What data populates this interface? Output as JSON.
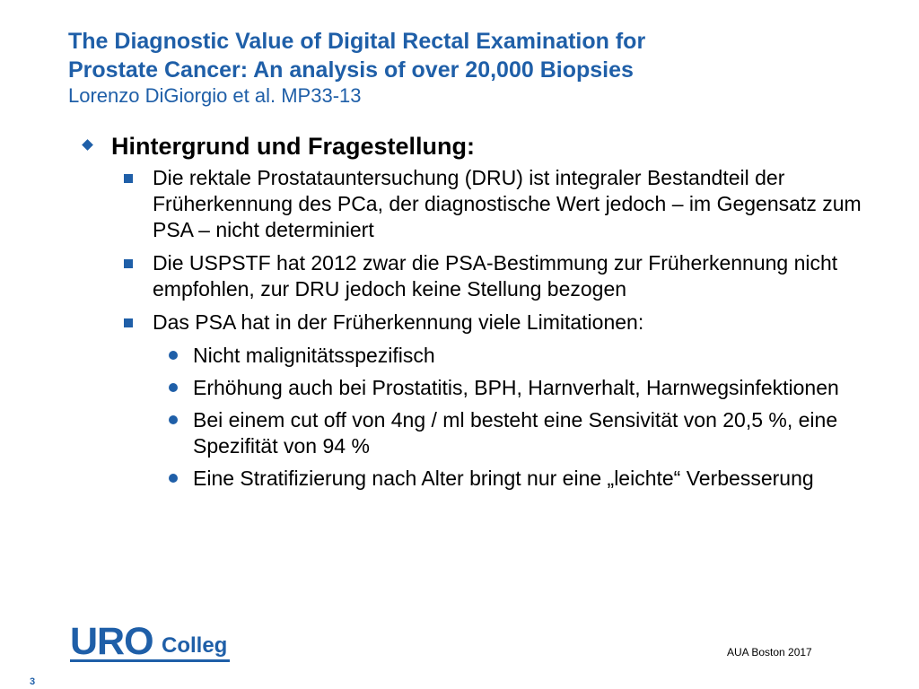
{
  "title": {
    "line1": "The Diagnostic Value of Digital Rectal Examination for",
    "line2": "Prostate Cancer: An analysis of over 20,000 Biopsies",
    "subtitle": "Lorenzo DiGiorgio et al. MP33-13"
  },
  "content": {
    "heading": "Hintergrund und Fragestellung:",
    "bullets": [
      {
        "text": "Die rektale Prostatauntersuchung (DRU) ist integraler Bestandteil der Früherkennung des PCa, der diagnostische Wert jedoch – im Gegensatz zum PSA – nicht determiniert"
      },
      {
        "text": "Die USPSTF hat 2012 zwar die PSA-Bestimmung  zur Früherkennung nicht empfohlen, zur DRU jedoch keine Stellung bezogen"
      },
      {
        "text": "Das PSA hat in der Früherkennung viele Limitationen:"
      }
    ],
    "subbullets": [
      {
        "text": "Nicht malignitätsspezifisch"
      },
      {
        "text": "Erhöhung auch bei Prostatitis, BPH, Harnverhalt, Harnwegsinfektionen"
      },
      {
        "text": "Bei einem cut off von 4ng / ml besteht eine Sensivität von 20,5 %, eine Spezifität von 94 %"
      },
      {
        "text": "Eine Stratifizierung nach Alter bringt nur eine „leichte“ Verbesserung"
      }
    ]
  },
  "footer": {
    "logo_uro": "URO",
    "logo_colleg": "Colleg",
    "conference": "AUA Boston 2017",
    "page_number": "3"
  },
  "colors": {
    "accent": "#1f5fa8"
  }
}
